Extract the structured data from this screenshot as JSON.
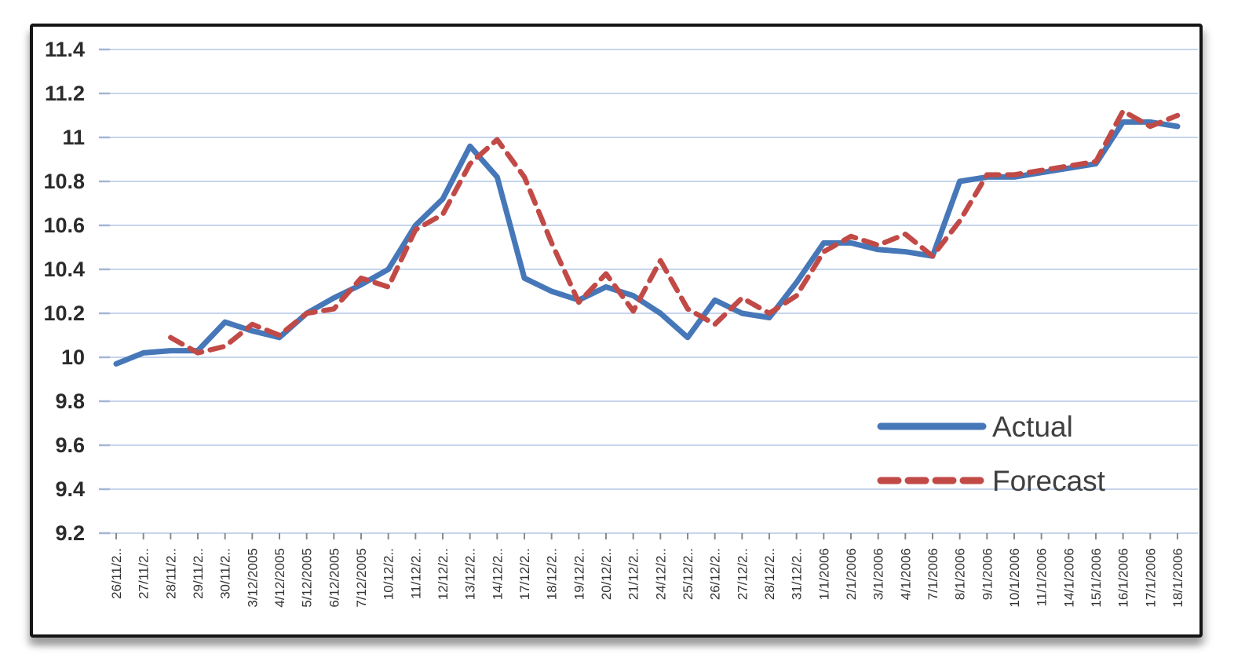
{
  "page": {
    "background": "#ffffff"
  },
  "frame": {
    "border_color": "#151515",
    "fill": "#ffffff"
  },
  "chart_data": {
    "type": "line",
    "title": "",
    "xlabel": "",
    "ylabel": "",
    "grid": {
      "show": true,
      "color": "#c6d5ee",
      "tick_color": "#a4b6d4",
      "x_tick_color": "#8a8a8a"
    },
    "x_axis": {
      "labels": [
        "26/11/2..",
        "27/11/2..",
        "28/11/2..",
        "29/11/2..",
        "30/11/2..",
        "3/12/2005",
        "4/12/2005",
        "5/12/2005",
        "6/12/2005",
        "7/12/2005",
        "10/12/2..",
        "11/12/2..",
        "12/12/2..",
        "13/12/2..",
        "14/12/2..",
        "17/12/2..",
        "18/12/2..",
        "19/12/2..",
        "20/12/2..",
        "21/12/2..",
        "24/12/2..",
        "25/12/2..",
        "26/12/2..",
        "27/12/2..",
        "28/12/2..",
        "31/12/2..",
        "1/1/2006",
        "2/1/2006",
        "3/1/2006",
        "4/1/2006",
        "7/1/2006",
        "8/1/2006",
        "9/1/2006",
        "10/1/2006",
        "11/1/2006",
        "14/1/2006",
        "15/1/2006",
        "16/1/2006",
        "17/1/2006",
        "18/1/2006"
      ],
      "label_color": "#333333"
    },
    "y_axis": {
      "min": 9.2,
      "max": 11.4,
      "step": 0.2,
      "tick_labels": [
        "11.4",
        "11.2",
        "11",
        "10.8",
        "10.6",
        "10.4",
        "10.2",
        "10",
        "9.8",
        "9.6",
        "9.4",
        "9.2"
      ],
      "label_color": "#2b2b2b"
    },
    "series": [
      {
        "name": "Actual",
        "color": "#4677b8",
        "line_style": "solid",
        "values": [
          9.97,
          10.02,
          10.03,
          10.03,
          10.16,
          10.12,
          10.09,
          10.2,
          10.27,
          10.33,
          10.4,
          10.6,
          10.72,
          10.96,
          10.82,
          10.36,
          10.3,
          10.26,
          10.32,
          10.28,
          10.2,
          10.09,
          10.26,
          10.2,
          10.18,
          10.34,
          10.52,
          10.52,
          10.49,
          10.48,
          10.46,
          10.8,
          10.82,
          10.82,
          10.84,
          10.86,
          10.88,
          11.07,
          11.07,
          11.05
        ]
      },
      {
        "name": "Forecast",
        "color": "#c14a47",
        "line_style": "dashed",
        "values": [
          null,
          null,
          10.09,
          10.02,
          10.05,
          10.15,
          10.1,
          10.2,
          10.22,
          10.36,
          10.32,
          10.58,
          10.65,
          10.88,
          10.99,
          10.82,
          10.52,
          10.25,
          10.38,
          10.21,
          10.44,
          10.22,
          10.15,
          10.27,
          10.2,
          10.28,
          10.48,
          10.55,
          10.51,
          10.56,
          10.46,
          10.62,
          10.83,
          10.83,
          10.85,
          10.87,
          10.89,
          11.12,
          11.05,
          11.1
        ]
      }
    ],
    "legend": {
      "position": "inside-right",
      "text_color": "#3f3f3f",
      "items": [
        {
          "label": "Actual"
        },
        {
          "label": "Forecast"
        }
      ]
    }
  }
}
